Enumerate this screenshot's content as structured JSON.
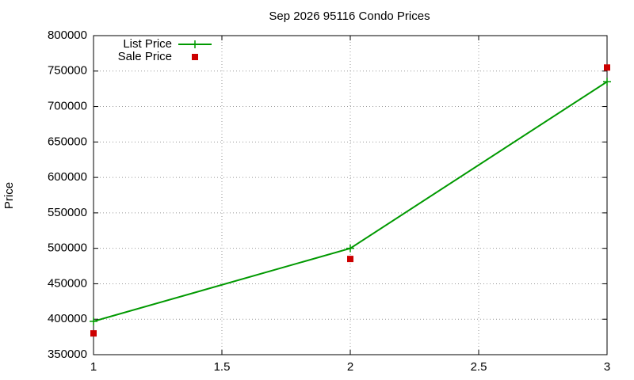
{
  "chart_data": {
    "type": "line",
    "title": "Sep 2026 95116 Condo Prices",
    "ylabel": "Price",
    "x": [
      1,
      2,
      3
    ],
    "series": [
      {
        "name": "List Price",
        "color": "#009900",
        "style": "linespoints",
        "values": [
          397000,
          500000,
          735000
        ]
      },
      {
        "name": "Sale Price",
        "color": "#cc0000",
        "style": "points",
        "values": [
          380000,
          485000,
          755000
        ]
      }
    ],
    "xlim": [
      1,
      3
    ],
    "xticks": [
      1,
      1.5,
      2,
      2.5,
      3
    ],
    "ylim": [
      350000,
      800000
    ],
    "yticks": [
      350000,
      400000,
      450000,
      500000,
      550000,
      600000,
      650000,
      700000,
      750000,
      800000
    ],
    "grid": true,
    "legend": "top-left"
  }
}
